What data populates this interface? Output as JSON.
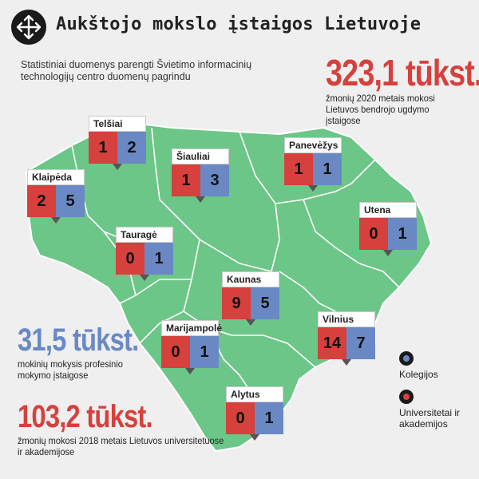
{
  "title": "Aukštojo mokslo įstaigos Lietuvoje",
  "subtitle": "Statistiniai duomenys parengti Švietimo informacinių technologijų centro duomenų pagrindu",
  "stats": {
    "general": {
      "value": "323,1 tūkst.",
      "desc": "žmonių 2020 metais mokosi Lietuvos bendrojo ugdymo įstaigose",
      "color": "#d6403d"
    },
    "vocational": {
      "value": "31,5 tūkst.",
      "desc": "mokinių mokysis profesinio mokymo įstaigose",
      "color": "#6a89c4"
    },
    "university": {
      "value": "103,2 tūkst.",
      "desc": "žmonių mokosi 2018 metais Lietuvos universitetuose ir akademijose",
      "color": "#d6403d"
    }
  },
  "cities": [
    {
      "name": "Telšiai",
      "universities": "1",
      "colleges": "2"
    },
    {
      "name": "Šiauliai",
      "universities": "1",
      "colleges": "3"
    },
    {
      "name": "Panevėžys",
      "universities": "1",
      "colleges": "1"
    },
    {
      "name": "Klaipėda",
      "universities": "2",
      "colleges": "5"
    },
    {
      "name": "Utena",
      "universities": "0",
      "colleges": "1"
    },
    {
      "name": "Tauragė",
      "universities": "0",
      "colleges": "1"
    },
    {
      "name": "Kaunas",
      "universities": "9",
      "colleges": "5"
    },
    {
      "name": "Marijampolė",
      "universities": "0",
      "colleges": "1"
    },
    {
      "name": "Vilnius",
      "universities": "14",
      "colleges": "7"
    },
    {
      "name": "Alytus",
      "universities": "0",
      "colleges": "1"
    }
  ],
  "legend": {
    "colleges": "Kolegijos",
    "universities": "Universitetai ir akademijos"
  },
  "colors": {
    "map_fill": "#6cc687",
    "map_border": "#ffffff",
    "university": "#d6403d",
    "college": "#6a89c4"
  },
  "icons": {
    "title": "arrows-cross-icon"
  }
}
